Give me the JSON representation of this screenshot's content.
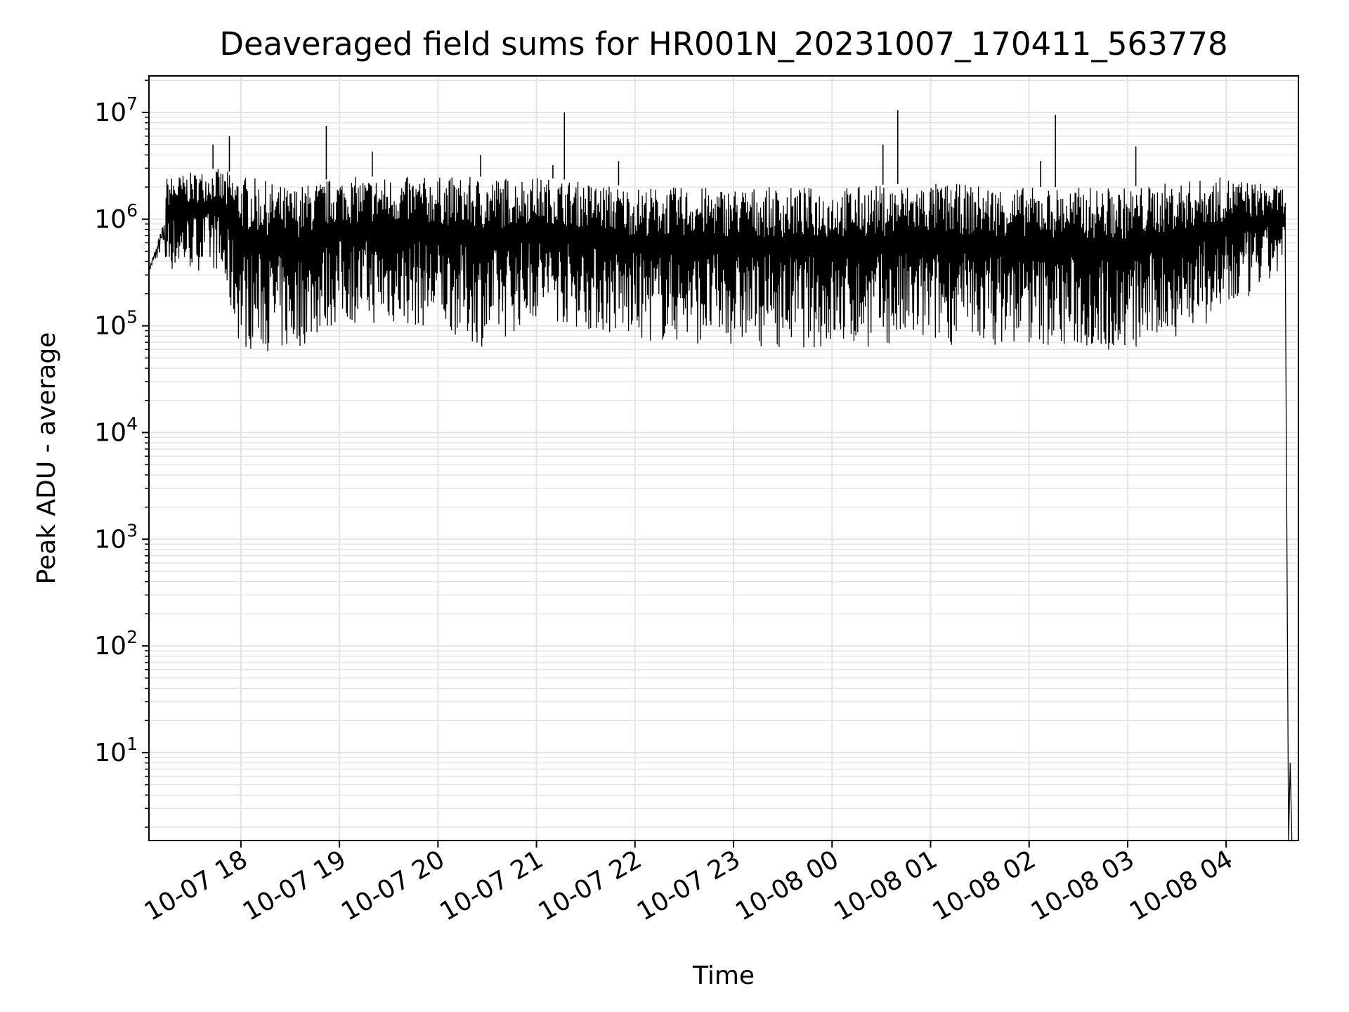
{
  "chart_data": {
    "type": "line",
    "title": "Deaveraged field sums for HR001N_20231007_170411_563778",
    "xlabel": "Time",
    "ylabel": "Peak ADU - average",
    "yscale": "log",
    "ylim": [
      1.5,
      22000000
    ],
    "xlim": [
      "2023-10-07 17:04",
      "2023-10-08 04:44"
    ],
    "grid": true,
    "x_tick_labels": [
      "10-07 18",
      "10-07 19",
      "10-07 20",
      "10-07 21",
      "10-07 22",
      "10-07 23",
      "10-08 00",
      "10-08 01",
      "10-08 02",
      "10-08 03",
      "10-08 04"
    ],
    "x_ticks": [
      "2023-10-07 18:00",
      "2023-10-07 19:00",
      "2023-10-07 20:00",
      "2023-10-07 21:00",
      "2023-10-07 22:00",
      "2023-10-07 23:00",
      "2023-10-08 00:00",
      "2023-10-08 01:00",
      "2023-10-08 02:00",
      "2023-10-08 03:00",
      "2023-10-08 04:00"
    ],
    "y_ticks": [
      {
        "base": "10",
        "exp": "1",
        "value": 10
      },
      {
        "base": "10",
        "exp": "2",
        "value": 100
      },
      {
        "base": "10",
        "exp": "3",
        "value": 1000
      },
      {
        "base": "10",
        "exp": "4",
        "value": 10000
      },
      {
        "base": "10",
        "exp": "5",
        "value": 100000
      },
      {
        "base": "10",
        "exp": "6",
        "value": 1000000
      },
      {
        "base": "10",
        "exp": "7",
        "value": 10000000
      }
    ],
    "series": [
      {
        "color": "#000000",
        "points": [
          [
            "2023-10-07 17:04",
            300000
          ],
          [
            "2023-10-07 17:10",
            330000
          ],
          [
            "2023-10-07 17:14",
            1300000
          ],
          [
            "2023-10-07 17:20",
            900000
          ],
          [
            "2023-10-07 17:30",
            2000000
          ],
          [
            "2023-10-07 17:40",
            800000
          ],
          [
            "2023-10-07 17:50",
            150000
          ],
          [
            "2023-10-07 18:00",
            60000
          ],
          [
            "2023-10-07 18:30",
            55000
          ],
          [
            "2023-10-07 19:00",
            110000
          ],
          [
            "2023-10-07 19:30",
            120000
          ],
          [
            "2023-10-07 20:00",
            100000
          ],
          [
            "2023-10-07 20:30",
            90000
          ],
          [
            "2023-10-07 21:00",
            120000
          ],
          [
            "2023-10-07 21:30",
            110000
          ],
          [
            "2023-10-07 22:00",
            80000
          ],
          [
            "2023-10-07 22:30",
            60000
          ],
          [
            "2023-10-07 23:00",
            90000
          ],
          [
            "2023-10-07 23:30",
            70000
          ],
          [
            "2023-10-08 00:00",
            65000
          ],
          [
            "2023-10-08 00:30",
            70000
          ],
          [
            "2023-10-08 01:00",
            65000
          ],
          [
            "2023-10-08 01:30",
            70000
          ],
          [
            "2023-10-08 02:00",
            70000
          ],
          [
            "2023-10-08 02:30",
            65000
          ],
          [
            "2023-10-08 03:00",
            60000
          ],
          [
            "2023-10-08 03:30",
            70000
          ],
          [
            "2023-10-08 04:00",
            200000
          ],
          [
            "2023-10-08 04:30",
            1200000
          ],
          [
            "2023-10-08 04:36",
            500000
          ],
          [
            "2023-10-08 04:38",
            1.5
          ],
          [
            "2023-10-08 04:39",
            8
          ],
          [
            "2023-10-08 04:40",
            1.5
          ]
        ],
        "upper_envelope": [
          [
            "2023-10-07 17:04",
            400000
          ],
          [
            "2023-10-07 17:15",
            2500000
          ],
          [
            "2023-10-07 17:45",
            3000000
          ],
          [
            "2023-10-07 18:30",
            2000000
          ],
          [
            "2023-10-07 19:00",
            2500000
          ],
          [
            "2023-10-07 20:00",
            2500000
          ],
          [
            "2023-10-07 21:00",
            2500000
          ],
          [
            "2023-10-07 22:00",
            2000000
          ],
          [
            "2023-10-07 23:00",
            2000000
          ],
          [
            "2023-10-08 00:00",
            2000000
          ],
          [
            "2023-10-08 01:00",
            2200000
          ],
          [
            "2023-10-08 02:00",
            2000000
          ],
          [
            "2023-10-08 03:00",
            2000000
          ],
          [
            "2023-10-08 04:00",
            2500000
          ],
          [
            "2023-10-08 04:36",
            2000000
          ]
        ],
        "lower_envelope": [
          [
            "2023-10-07 17:04",
            280000
          ],
          [
            "2023-10-07 17:45",
            300000
          ],
          [
            "2023-10-07 18:00",
            50000
          ],
          [
            "2023-10-07 18:30",
            45000
          ],
          [
            "2023-10-07 19:00",
            90000
          ],
          [
            "2023-10-07 20:00",
            80000
          ],
          [
            "2023-10-07 20:30",
            50000
          ],
          [
            "2023-10-07 21:00",
            100000
          ],
          [
            "2023-10-07 22:00",
            60000
          ],
          [
            "2023-10-07 23:00",
            55000
          ],
          [
            "2023-10-08 00:00",
            50000
          ],
          [
            "2023-10-08 01:00",
            55000
          ],
          [
            "2023-10-08 02:00",
            55000
          ],
          [
            "2023-10-08 03:00",
            45000
          ],
          [
            "2023-10-08 04:00",
            100000
          ],
          [
            "2023-10-08 04:36",
            300000
          ]
        ],
        "spikes": [
          [
            "2023-10-07 17:43",
            5000000
          ],
          [
            "2023-10-07 17:53",
            6000000
          ],
          [
            "2023-10-07 18:52",
            7500000
          ],
          [
            "2023-10-07 21:17",
            10000000
          ],
          [
            "2023-10-07 21:10",
            3200000
          ],
          [
            "2023-10-07 21:50",
            3500000
          ],
          [
            "2023-10-08 00:31",
            5000000
          ],
          [
            "2023-10-08 00:40",
            10500000
          ],
          [
            "2023-10-08 02:07",
            3500000
          ],
          [
            "2023-10-08 02:16",
            9500000
          ],
          [
            "2023-10-08 03:05",
            4800000
          ],
          [
            "2023-10-07 19:20",
            4300000
          ],
          [
            "2023-10-07 20:26",
            4000000
          ]
        ]
      }
    ]
  }
}
